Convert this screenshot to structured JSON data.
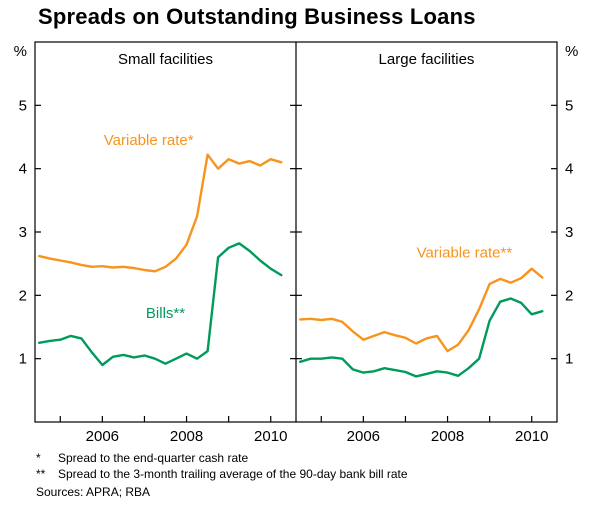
{
  "title": "Spreads on Outstanding Business Loans",
  "footnotes": [
    {
      "marker": "*",
      "text": "Spread to the end-quarter cash rate"
    },
    {
      "marker": "**",
      "text": "Spread to the 3-month trailing average of the 90-day bank bill rate"
    }
  ],
  "sources": "Sources: APRA; RBA",
  "colors": {
    "variable": "#F7941E",
    "bills": "#009A5B",
    "axis": "#000000"
  },
  "axis": {
    "unit": "%",
    "ylim": [
      0,
      6
    ],
    "yticks": [
      1,
      2,
      3,
      4,
      5
    ],
    "xlim": [
      2004.4,
      2010.6
    ],
    "xticks": [
      2005,
      2006,
      2007,
      2008,
      2009,
      2010
    ],
    "xticklabels": [
      2006,
      2008,
      2010
    ]
  },
  "chart_data": {
    "type": "line",
    "x": [
      2004.5,
      2004.75,
      2005.0,
      2005.25,
      2005.5,
      2005.75,
      2006.0,
      2006.25,
      2006.5,
      2006.75,
      2007.0,
      2007.25,
      2007.5,
      2007.75,
      2008.0,
      2008.25,
      2008.5,
      2008.75,
      2009.0,
      2009.25,
      2009.5,
      2009.75,
      2010.0,
      2010.25
    ],
    "panels": [
      {
        "title": "Small facilities",
        "series": [
          {
            "name": "Variable rate*",
            "color": "#F7941E",
            "values": [
              2.62,
              2.58,
              2.55,
              2.52,
              2.48,
              2.45,
              2.46,
              2.44,
              2.45,
              2.43,
              2.4,
              2.38,
              2.45,
              2.58,
              2.8,
              3.25,
              4.22,
              4.0,
              4.15,
              4.08,
              4.12,
              4.05,
              4.15,
              4.1
            ]
          },
          {
            "name": "Bills**",
            "color": "#009A5B",
            "values": [
              1.25,
              1.28,
              1.3,
              1.36,
              1.32,
              1.1,
              0.9,
              1.03,
              1.06,
              1.02,
              1.05,
              1.0,
              0.92,
              1.0,
              1.08,
              1.0,
              1.12,
              2.6,
              2.75,
              2.82,
              2.7,
              2.55,
              2.42,
              2.32
            ]
          }
        ],
        "annotations": [
          {
            "text": "Variable rate*",
            "x": 2007.1,
            "y": 4.45,
            "color": "#F7941E"
          },
          {
            "text": "Bills**",
            "x": 2007.5,
            "y": 1.72,
            "color": "#009A5B"
          }
        ]
      },
      {
        "title": "Large facilities",
        "series": [
          {
            "name": "Variable rate**",
            "color": "#F7941E",
            "values": [
              1.62,
              1.63,
              1.61,
              1.63,
              1.58,
              1.43,
              1.3,
              1.36,
              1.42,
              1.37,
              1.33,
              1.24,
              1.32,
              1.36,
              1.12,
              1.22,
              1.45,
              1.78,
              2.18,
              2.26,
              2.2,
              2.27,
              2.42,
              2.28
            ]
          },
          {
            "name": "Bills**",
            "color": "#009A5B",
            "values": [
              0.95,
              1.0,
              1.0,
              1.02,
              1.0,
              0.83,
              0.78,
              0.8,
              0.85,
              0.82,
              0.79,
              0.72,
              0.76,
              0.8,
              0.78,
              0.73,
              0.85,
              1.0,
              1.6,
              1.9,
              1.95,
              1.88,
              1.7,
              1.75
            ]
          }
        ],
        "annotations": [
          {
            "text": "Variable rate**",
            "x": 2008.4,
            "y": 2.68,
            "color": "#F7941E"
          }
        ]
      }
    ]
  }
}
